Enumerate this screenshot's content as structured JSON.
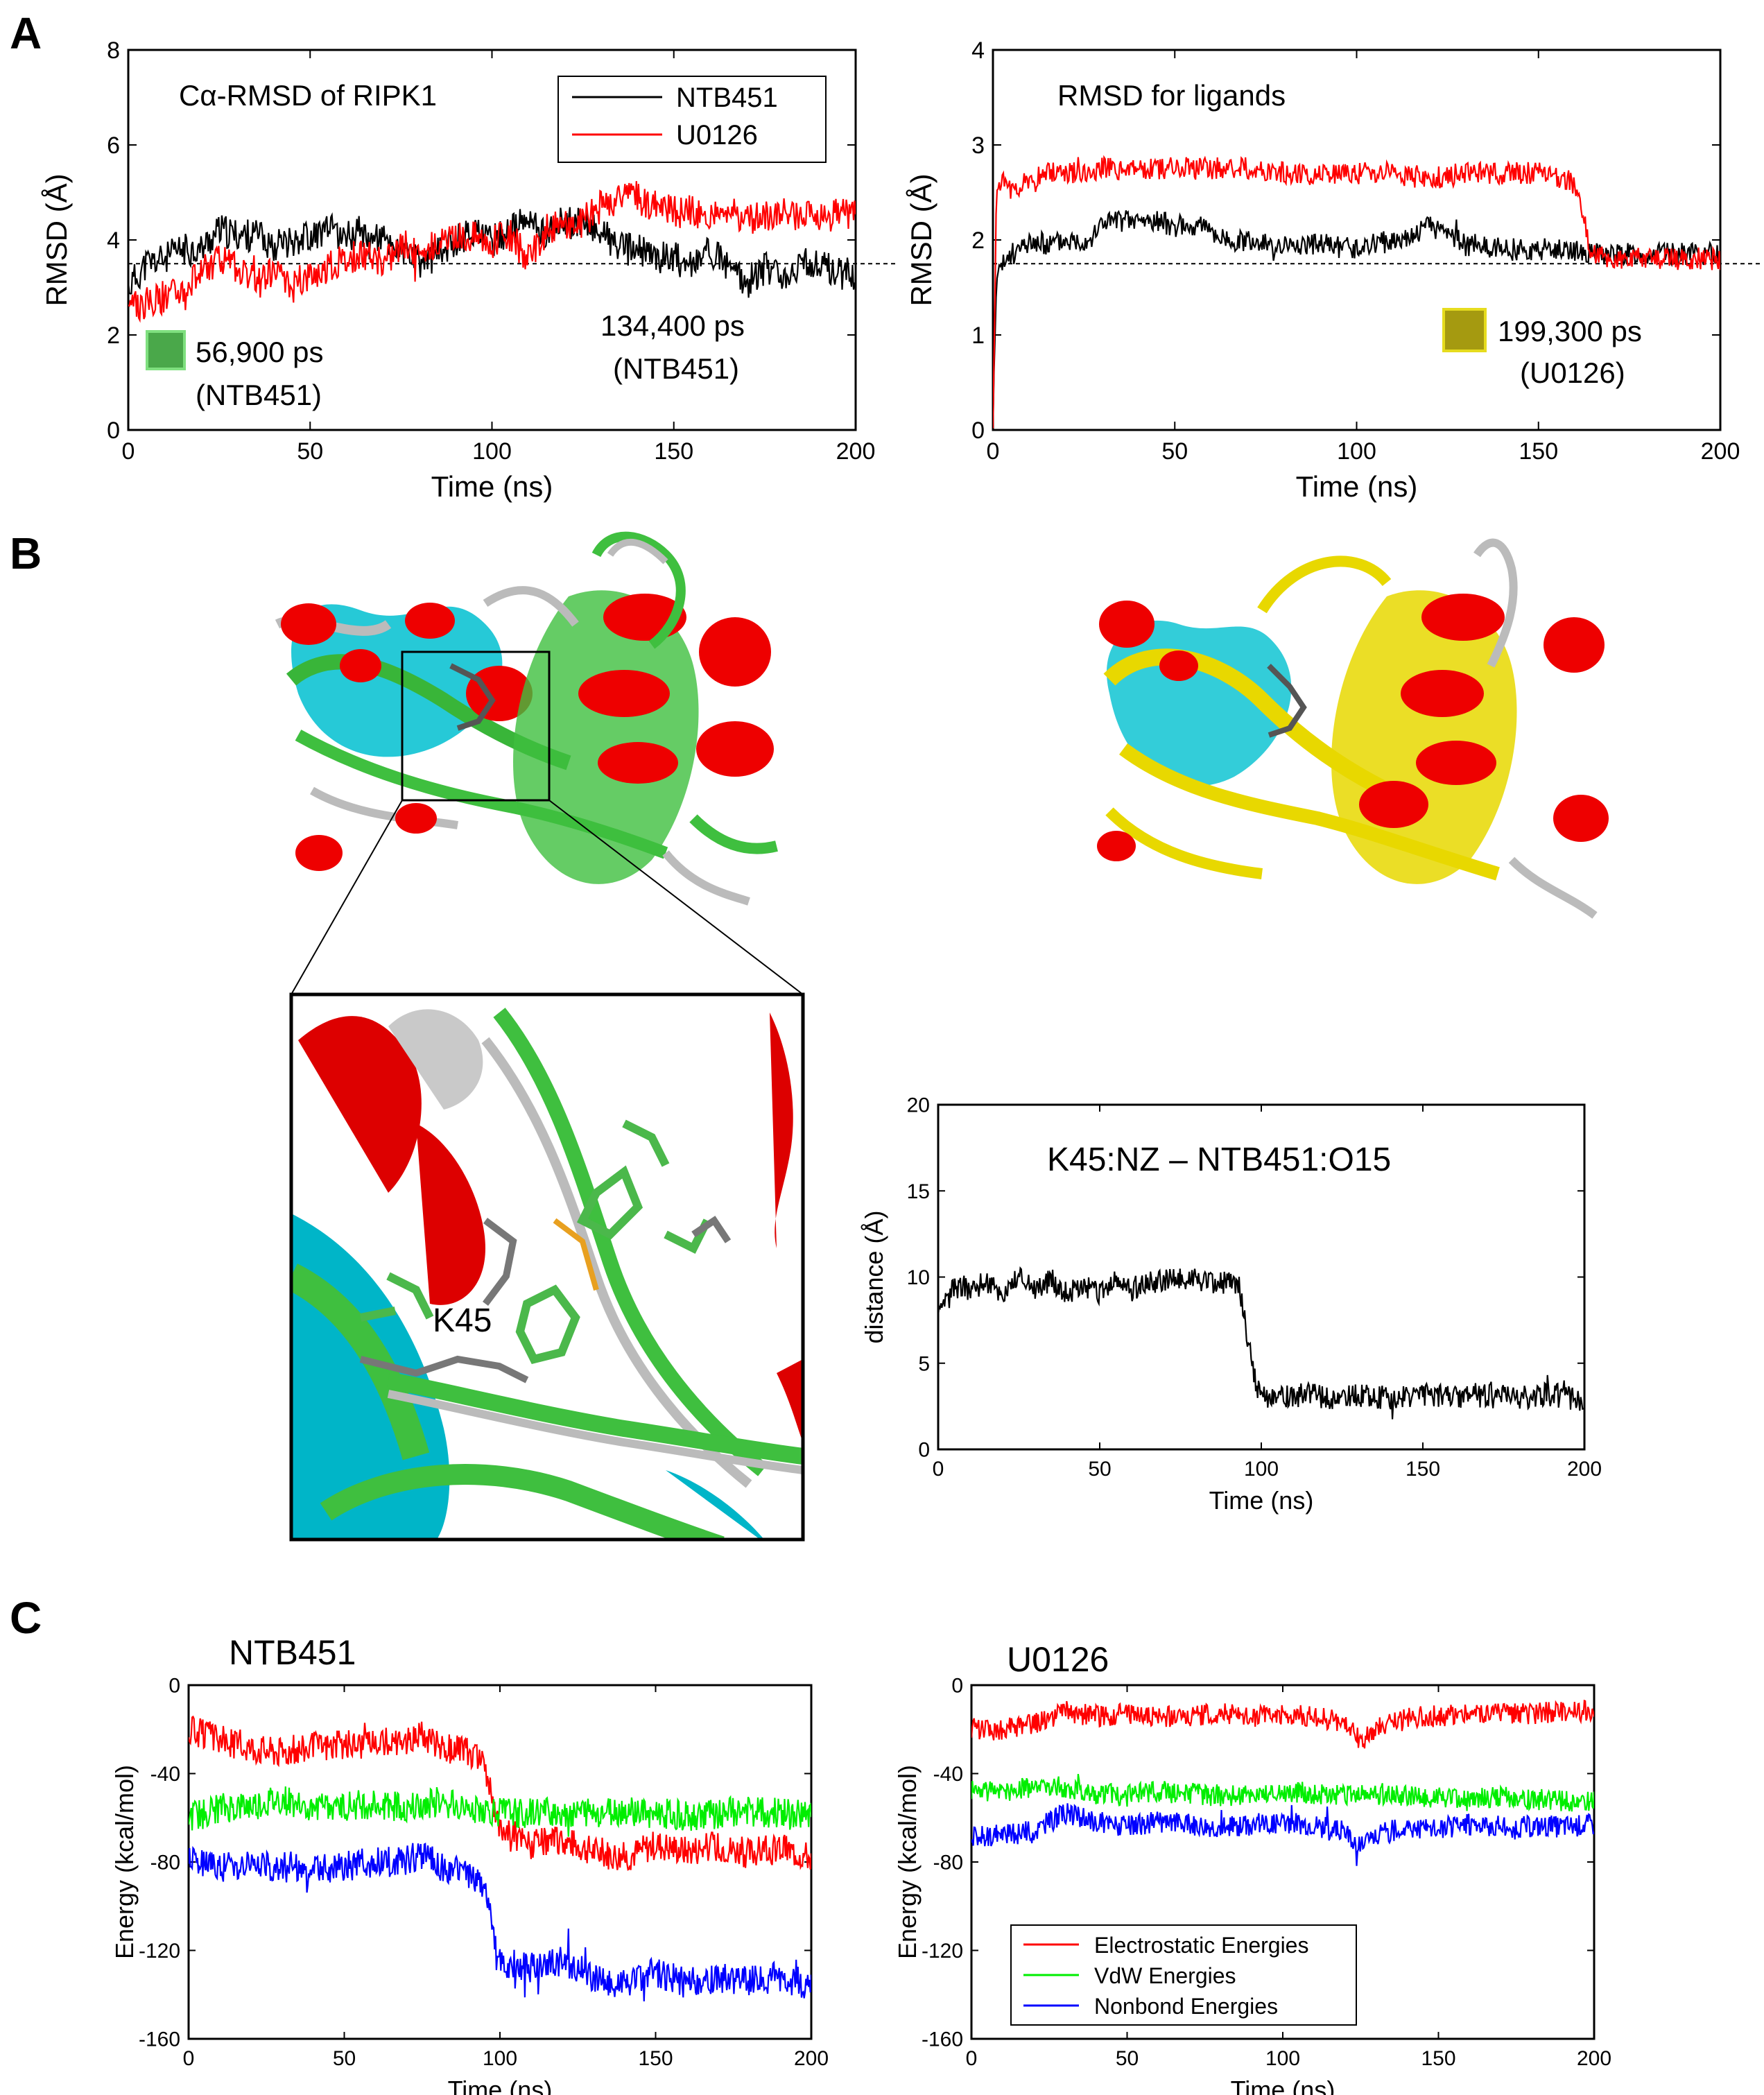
{
  "panels": {
    "a": "A",
    "b": "B",
    "c": "C"
  },
  "colors": {
    "black": "#000000",
    "red": "#ff0000",
    "green": "#00ee00",
    "blue": "#0000ff",
    "marker_green": "#4aa84a",
    "marker_olive": "#a59a10",
    "marker_olive_border": "#e6dc1e"
  },
  "chart_data": [
    {
      "id": "a_left",
      "type": "line",
      "title": "Cα-RMSD of RIPK1",
      "xlabel": "Time (ns)",
      "ylabel": "RMSD (Å)",
      "xlim": [
        0,
        200
      ],
      "ylim": [
        0,
        8
      ],
      "xticks": [
        0,
        50,
        100,
        150,
        200
      ],
      "yticks": [
        0,
        2,
        4,
        6,
        8
      ],
      "legend_position": "top-right",
      "series": [
        {
          "name": "NTB451",
          "color": "#000000",
          "x": [
            0,
            5,
            10,
            15,
            20,
            25,
            30,
            35,
            40,
            45,
            50,
            55,
            60,
            65,
            70,
            75,
            80,
            85,
            90,
            95,
            100,
            105,
            110,
            115,
            120,
            125,
            130,
            135,
            140,
            145,
            150,
            155,
            160,
            165,
            170,
            175,
            180,
            185,
            190,
            195,
            200
          ],
          "y": [
            3.0,
            3.5,
            3.6,
            3.8,
            3.8,
            4.2,
            4.1,
            4.1,
            3.9,
            4.0,
            4.1,
            4.2,
            4.1,
            4.2,
            4.0,
            3.8,
            3.5,
            3.7,
            4.0,
            4.2,
            4.0,
            4.2,
            4.4,
            4.1,
            4.4,
            4.3,
            4.2,
            3.8,
            3.8,
            3.6,
            3.7,
            3.5,
            3.8,
            3.4,
            3.1,
            3.4,
            3.3,
            3.5,
            3.5,
            3.3,
            3.3
          ]
        },
        {
          "name": "U0126",
          "color": "#ff0000",
          "x": [
            0,
            5,
            10,
            15,
            20,
            25,
            30,
            35,
            40,
            45,
            50,
            55,
            60,
            65,
            70,
            75,
            80,
            85,
            90,
            95,
            100,
            105,
            110,
            115,
            120,
            125,
            130,
            135,
            140,
            145,
            150,
            155,
            160,
            165,
            170,
            175,
            180,
            185,
            190,
            195,
            200
          ],
          "y": [
            2.5,
            2.7,
            2.8,
            3.0,
            3.3,
            3.6,
            3.4,
            3.1,
            3.3,
            3.0,
            3.3,
            3.4,
            3.6,
            3.7,
            3.5,
            3.9,
            3.8,
            3.9,
            4.0,
            4.1,
            4.0,
            4.1,
            3.6,
            4.2,
            4.3,
            4.4,
            4.7,
            4.9,
            4.9,
            4.7,
            4.6,
            4.6,
            4.5,
            4.6,
            4.4,
            4.5,
            4.6,
            4.5,
            4.5,
            4.5,
            4.6
          ]
        }
      ],
      "reference_line": 3.5,
      "annotations": [
        {
          "text": "56,900 ps",
          "text2": "(NTB451)",
          "marker": "green"
        },
        {
          "text": "134,400 ps",
          "text2": "(NTB451)"
        }
      ]
    },
    {
      "id": "a_right",
      "type": "line",
      "title": "RMSD for ligands",
      "xlabel": "Time (ns)",
      "ylabel": "RMSD (Å)",
      "xlim": [
        0,
        200
      ],
      "ylim": [
        0,
        4
      ],
      "xticks": [
        0,
        50,
        100,
        150,
        200
      ],
      "yticks": [
        0,
        1,
        2,
        3,
        4
      ],
      "series": [
        {
          "name": "NTB451",
          "color": "#000000",
          "x": [
            0,
            1,
            3,
            5,
            10,
            15,
            20,
            25,
            28,
            30,
            35,
            40,
            45,
            50,
            55,
            60,
            62,
            70,
            80,
            90,
            100,
            110,
            115,
            120,
            125,
            130,
            135,
            140,
            150,
            160,
            165,
            170,
            180,
            190,
            200
          ],
          "y": [
            0.1,
            1.6,
            1.75,
            1.85,
            1.95,
            1.95,
            2.0,
            2.0,
            2.05,
            2.2,
            2.2,
            2.2,
            2.2,
            2.15,
            2.15,
            2.15,
            2.0,
            2.0,
            1.95,
            1.95,
            1.9,
            2.0,
            2.05,
            2.15,
            2.05,
            1.95,
            1.95,
            1.9,
            1.9,
            1.9,
            1.85,
            1.85,
            1.85,
            1.85,
            1.85
          ]
        },
        {
          "name": "U0126",
          "color": "#ff0000",
          "x": [
            0,
            1,
            3,
            5,
            10,
            15,
            20,
            25,
            30,
            40,
            50,
            60,
            70,
            80,
            90,
            100,
            110,
            120,
            130,
            140,
            150,
            155,
            160,
            162,
            164,
            170,
            180,
            190,
            200
          ],
          "y": [
            0.1,
            2.5,
            2.6,
            2.55,
            2.6,
            2.7,
            2.7,
            2.7,
            2.75,
            2.75,
            2.75,
            2.75,
            2.75,
            2.7,
            2.7,
            2.7,
            2.7,
            2.65,
            2.7,
            2.7,
            2.7,
            2.65,
            2.6,
            2.3,
            1.9,
            1.8,
            1.8,
            1.8,
            1.8
          ]
        }
      ],
      "reference_line": 1.75,
      "annotations": [
        {
          "text": "199,300 ps",
          "text2": "(U0126)",
          "marker": "olive"
        }
      ]
    },
    {
      "id": "b_distance",
      "type": "line",
      "title": "K45:NZ – NTB451:O15",
      "xlabel": "Time (ns)",
      "ylabel": "distance (Å)",
      "xlim": [
        0,
        200
      ],
      "ylim": [
        0,
        20
      ],
      "xticks": [
        0,
        50,
        100,
        150,
        200
      ],
      "yticks": [
        0,
        5,
        10,
        15,
        20
      ],
      "series": [
        {
          "name": "",
          "color": "#000000",
          "x": [
            0,
            5,
            10,
            15,
            20,
            25,
            30,
            35,
            40,
            45,
            50,
            55,
            60,
            65,
            70,
            75,
            80,
            85,
            90,
            93,
            95,
            97,
            99,
            100,
            105,
            110,
            115,
            120,
            130,
            140,
            150,
            160,
            170,
            180,
            190,
            200
          ],
          "y": [
            7.5,
            9.5,
            9.3,
            9.8,
            9.0,
            10.2,
            9.4,
            9.8,
            9.1,
            9.5,
            9.0,
            9.8,
            9.3,
            9.7,
            9.8,
            10.0,
            9.8,
            9.6,
            9.8,
            9.5,
            7.5,
            5.0,
            3.5,
            3.0,
            3.2,
            3.0,
            3.3,
            3.0,
            3.1,
            3.0,
            3.2,
            3.0,
            3.1,
            3.0,
            3.2,
            2.8
          ]
        }
      ]
    },
    {
      "id": "c_ntb451",
      "type": "line",
      "title": "NTB451",
      "xlabel": "Time (ns)",
      "ylabel": "Energy (kcal/mol)",
      "xlim": [
        0,
        200
      ],
      "ylim": [
        -160,
        0
      ],
      "xticks": [
        0,
        50,
        100,
        150,
        200
      ],
      "yticks": [
        0,
        -40,
        -80,
        -120,
        -160
      ],
      "series": [
        {
          "name": "Electrostatic Energies",
          "color": "#ff0000",
          "x": [
            0,
            10,
            20,
            30,
            40,
            50,
            60,
            70,
            75,
            80,
            90,
            95,
            100,
            110,
            120,
            130,
            140,
            150,
            160,
            170,
            180,
            190,
            200
          ],
          "y": [
            -20,
            -25,
            -28,
            -30,
            -28,
            -27,
            -26,
            -25,
            -22,
            -28,
            -30,
            -35,
            -65,
            -72,
            -70,
            -75,
            -78,
            -72,
            -75,
            -73,
            -76,
            -74,
            -78
          ]
        },
        {
          "name": "VdW Energies",
          "color": "#00ee00",
          "x": [
            0,
            10,
            20,
            30,
            40,
            50,
            60,
            70,
            80,
            90,
            100,
            110,
            120,
            130,
            140,
            150,
            160,
            170,
            180,
            190,
            200
          ],
          "y": [
            -60,
            -56,
            -55,
            -52,
            -56,
            -55,
            -54,
            -55,
            -53,
            -55,
            -58,
            -58,
            -57,
            -58,
            -57,
            -58,
            -59,
            -58,
            -57,
            -58,
            -60
          ]
        },
        {
          "name": "Nonbond Energies",
          "color": "#0000ff",
          "x": [
            0,
            10,
            20,
            30,
            40,
            50,
            60,
            70,
            75,
            80,
            90,
            95,
            100,
            110,
            120,
            130,
            140,
            150,
            160,
            170,
            180,
            190,
            200
          ],
          "y": [
            -78,
            -82,
            -82,
            -82,
            -84,
            -82,
            -80,
            -80,
            -76,
            -82,
            -85,
            -90,
            -125,
            -128,
            -125,
            -132,
            -135,
            -130,
            -135,
            -132,
            -134,
            -132,
            -136
          ]
        }
      ]
    },
    {
      "id": "c_u0126",
      "type": "line",
      "title": "U0126",
      "xlabel": "Time (ns)",
      "ylabel": "Energy (kcal/mol)",
      "xlim": [
        0,
        200
      ],
      "ylim": [
        -160,
        0
      ],
      "xticks": [
        0,
        50,
        100,
        150,
        200
      ],
      "yticks": [
        0,
        -40,
        -80,
        -120,
        -160
      ],
      "legend_position": "bottom-left",
      "series": [
        {
          "name": "Electrostatic Energies",
          "color": "#ff0000",
          "x": [
            0,
            10,
            20,
            30,
            40,
            50,
            60,
            70,
            80,
            90,
            100,
            110,
            120,
            125,
            130,
            140,
            150,
            160,
            170,
            180,
            190,
            200
          ],
          "y": [
            -20,
            -20,
            -18,
            -12,
            -14,
            -13,
            -14,
            -14,
            -13,
            -14,
            -14,
            -14,
            -17,
            -25,
            -20,
            -15,
            -14,
            -13,
            -13,
            -13,
            -12,
            -12
          ]
        },
        {
          "name": "VdW Energies",
          "color": "#00ee00",
          "x": [
            0,
            10,
            20,
            30,
            40,
            50,
            60,
            70,
            80,
            90,
            100,
            110,
            120,
            130,
            140,
            150,
            160,
            170,
            180,
            190,
            200
          ],
          "y": [
            -48,
            -48,
            -46,
            -46,
            -49,
            -50,
            -48,
            -49,
            -50,
            -49,
            -48,
            -49,
            -50,
            -49,
            -50,
            -51,
            -52,
            -50,
            -52,
            -52,
            -53
          ]
        },
        {
          "name": "Nonbond Energies",
          "color": "#0000ff",
          "x": [
            0,
            10,
            20,
            30,
            40,
            50,
            60,
            70,
            80,
            90,
            100,
            110,
            120,
            125,
            130,
            140,
            150,
            160,
            170,
            180,
            190,
            200
          ],
          "y": [
            -68,
            -68,
            -66,
            -58,
            -62,
            -64,
            -62,
            -63,
            -64,
            -63,
            -62,
            -63,
            -66,
            -72,
            -68,
            -64,
            -65,
            -63,
            -64,
            -64,
            -64,
            -63
          ]
        }
      ]
    }
  ],
  "panel_b": {
    "zoom_label": "K45"
  }
}
